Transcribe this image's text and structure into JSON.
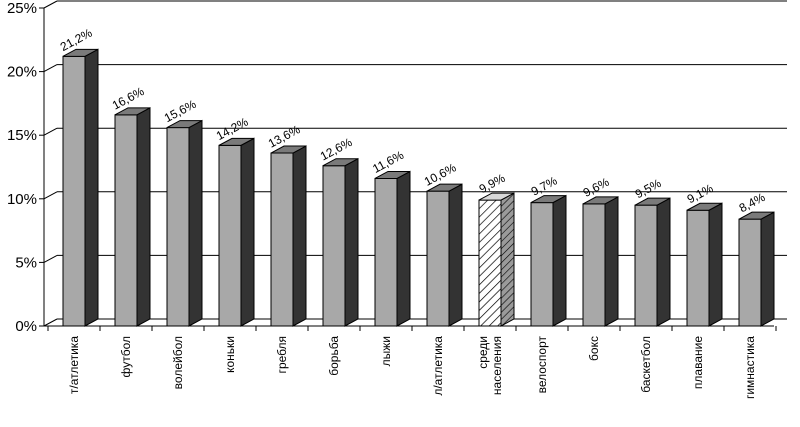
{
  "chart_data": {
    "type": "bar",
    "style": "3d-column",
    "categories": [
      [
        "т/атлетика"
      ],
      [
        "футбол"
      ],
      [
        "волейбол"
      ],
      [
        "коньки"
      ],
      [
        "гребля"
      ],
      [
        "борьба"
      ],
      [
        "лыжи"
      ],
      [
        "л/атлетика"
      ],
      [
        "среди",
        "населения"
      ],
      [
        "велоспорт"
      ],
      [
        "бокс"
      ],
      [
        "баскетбол"
      ],
      [
        "плавание"
      ],
      [
        "гимнастика"
      ]
    ],
    "values": [
      21.2,
      16.6,
      15.6,
      14.2,
      13.6,
      12.6,
      11.6,
      10.6,
      9.9,
      9.7,
      9.6,
      9.5,
      9.1,
      8.4
    ],
    "data_labels": [
      "21,2%",
      "16,6%",
      "15,6%",
      "14,2%",
      "13,6%",
      "12,6%",
      "11,6%",
      "10,6%",
      "9,9%",
      "9,7%",
      "9,6%",
      "9,5%",
      "9,1%",
      "8,4%"
    ],
    "highlight_index": 8,
    "y_ticks": [
      0,
      5,
      10,
      15,
      20,
      25
    ],
    "y_tick_labels": [
      "0%",
      "5%",
      "10%",
      "15%",
      "20%",
      "25%"
    ],
    "ylim": [
      0,
      25
    ],
    "grid": true,
    "legend": "none",
    "title": "",
    "xlabel": "",
    "ylabel": "",
    "colors": {
      "bar_front": "#a8a8a8",
      "bar_side": "#333333",
      "bar_top": "#7a7a7a",
      "gridline": "#000000"
    }
  }
}
